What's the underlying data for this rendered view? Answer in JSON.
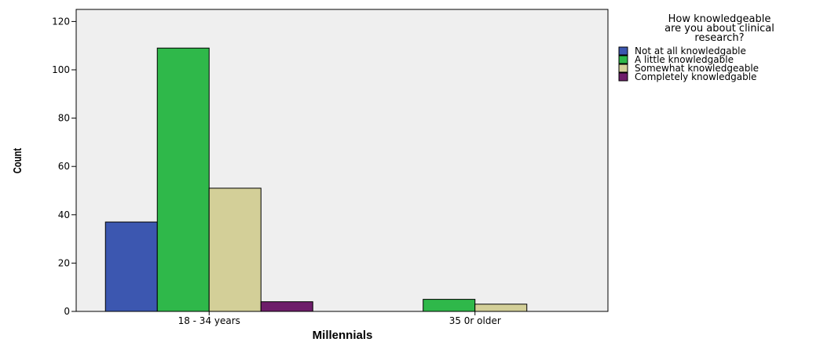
{
  "chart_data": {
    "type": "bar",
    "xlabel": "Millennials",
    "ylabel": "Count",
    "categories": [
      "18 - 34 years",
      "35 0r older"
    ],
    "ylim": [
      0,
      125
    ],
    "yticks": [
      0,
      20,
      40,
      60,
      80,
      100,
      120
    ],
    "grid": false,
    "legend": {
      "title_lines": [
        "How knowledgeable",
        "are you about clinical",
        "research?"
      ],
      "placement": "right"
    },
    "series": [
      {
        "name": "Not at all knowledgable",
        "color": "#3c57b0",
        "values": [
          37,
          0
        ]
      },
      {
        "name": "A little knowledgable",
        "color": "#2fb84a",
        "values": [
          109,
          5
        ]
      },
      {
        "name": "Somewhat knowledgeable",
        "color": "#d3cf98",
        "values": [
          51,
          3
        ]
      },
      {
        "name": "Completely knowledgable",
        "color": "#6e1d6a",
        "values": [
          4,
          0
        ]
      }
    ],
    "plot_background": "#efefef"
  }
}
